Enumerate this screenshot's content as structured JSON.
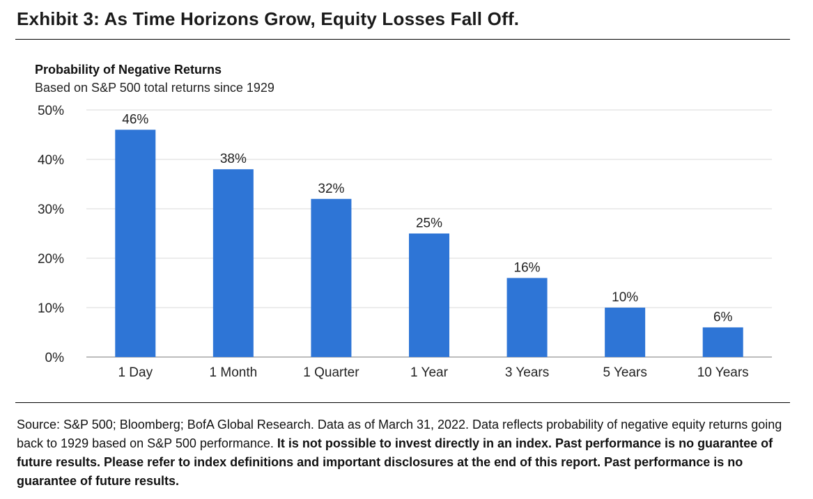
{
  "exhibit_title": "Exhibit 3: As Time Horizons Grow, Equity Losses Fall Off.",
  "colors": {
    "bar": "#2E75D6",
    "grid": "#D9D9D9",
    "axis": "#A6A6A6",
    "text": "#222222"
  },
  "chart_data": {
    "type": "bar",
    "title": "Probability of Negative Returns",
    "subtitle": "Based on S&P 500 total returns since 1929",
    "xlabel": "",
    "ylabel": "",
    "categories": [
      "1 Day",
      "1 Month",
      "1 Quarter",
      "1 Year",
      "3 Years",
      "5 Years",
      "10 Years"
    ],
    "values": [
      46,
      38,
      32,
      25,
      16,
      10,
      6
    ],
    "value_labels": [
      "46%",
      "38%",
      "32%",
      "25%",
      "16%",
      "10%",
      "6%"
    ],
    "ylim": [
      0,
      50
    ],
    "yticks": [
      0,
      10,
      20,
      30,
      40,
      50
    ],
    "ytick_labels": [
      "0%",
      "10%",
      "20%",
      "30%",
      "40%",
      "50%"
    ],
    "grid": true,
    "legend": "none"
  },
  "footer": {
    "source_plain": "Source: S&P 500; Bloomberg; BofA Global Research. Data as of March 31, 2022. Data reflects probability of negative equity returns going back to 1929 based on S&P 500 performance. ",
    "source_bold": "It is not possible to invest directly in an index. Past performance is no guarantee of future results. Please refer to index definitions and important disclosures at the end of this report. Past performance is no guarantee of future results."
  }
}
